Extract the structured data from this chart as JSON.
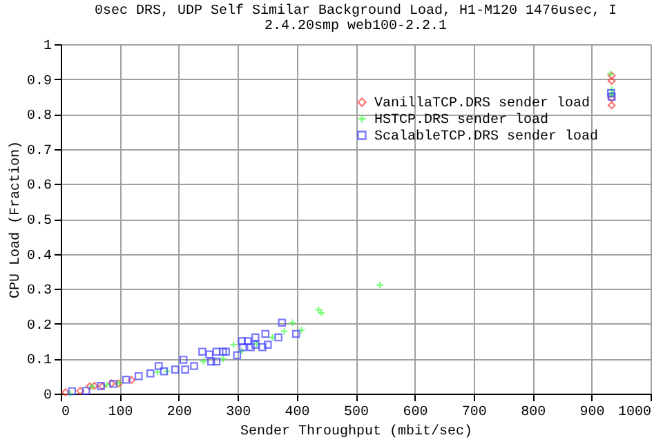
{
  "chart_data": {
    "type": "scatter",
    "title": "0sec DRS, UDP Self Similar Background Load, H1-M120 1476usec, I",
    "subtitle": "2.4.20smp web100-2.2.1",
    "xlabel": "Sender Throughput (mbit/sec)",
    "ylabel": "CPU Load (Fraction)",
    "xlim": [
      0,
      1000
    ],
    "ylim": [
      0,
      1
    ],
    "xticks": [
      0,
      100,
      200,
      300,
      400,
      500,
      600,
      700,
      800,
      900,
      1000
    ],
    "yticks": [
      0,
      0.1,
      0.2,
      0.3,
      0.4,
      0.5,
      0.6,
      0.7,
      0.8,
      0.9,
      1
    ],
    "grid": true,
    "legend": "top right",
    "series": [
      {
        "name": "VanillaTCP.DRS sender load",
        "color": "#ff4040",
        "marker": "diamond",
        "x": [
          8,
          33,
          49,
          57,
          70,
          86,
          98,
          120,
          934,
          934,
          934,
          934
        ],
        "values": [
          0.004,
          0.008,
          0.021,
          0.022,
          0.021,
          0.029,
          0.029,
          0.039,
          0.91,
          0.895,
          0.845,
          0.825
        ]
      },
      {
        "name": "HSTCP.DRS sender load",
        "color": "#40ff40",
        "marker": "cross",
        "x": [
          16,
          53,
          78,
          98,
          164,
          180,
          242,
          275,
          293,
          307,
          332,
          359,
          379,
          393,
          408,
          437,
          442,
          541,
          932,
          934,
          934,
          935
        ],
        "values": [
          0,
          0.02,
          0.025,
          0.03,
          0.062,
          0.064,
          0.092,
          0.1,
          0.14,
          0.122,
          0.143,
          0.161,
          0.178,
          0.203,
          0.182,
          0.24,
          0.231,
          0.311,
          0.915,
          0.87,
          0.855,
          0.86
        ]
      },
      {
        "name": "ScalableTCP.DRS sender load",
        "color": "#4040ff",
        "marker": "square",
        "x": [
          19,
          43,
          68,
          89,
          111,
          132,
          152,
          166,
          175,
          194,
          208,
          211,
          226,
          240,
          252,
          255,
          264,
          264,
          275,
          280,
          299,
          307,
          309,
          317,
          322,
          330,
          330,
          342,
          347,
          351,
          369,
          375,
          399,
          933,
          934
        ],
        "values": [
          0.007,
          0.008,
          0.022,
          0.028,
          0.04,
          0.05,
          0.058,
          0.079,
          0.064,
          0.069,
          0.097,
          0.069,
          0.079,
          0.12,
          0.112,
          0.092,
          0.12,
          0.092,
          0.12,
          0.12,
          0.11,
          0.15,
          0.133,
          0.15,
          0.133,
          0.161,
          0.14,
          0.133,
          0.171,
          0.14,
          0.161,
          0.203,
          0.171,
          0.86,
          0.85
        ]
      }
    ]
  }
}
